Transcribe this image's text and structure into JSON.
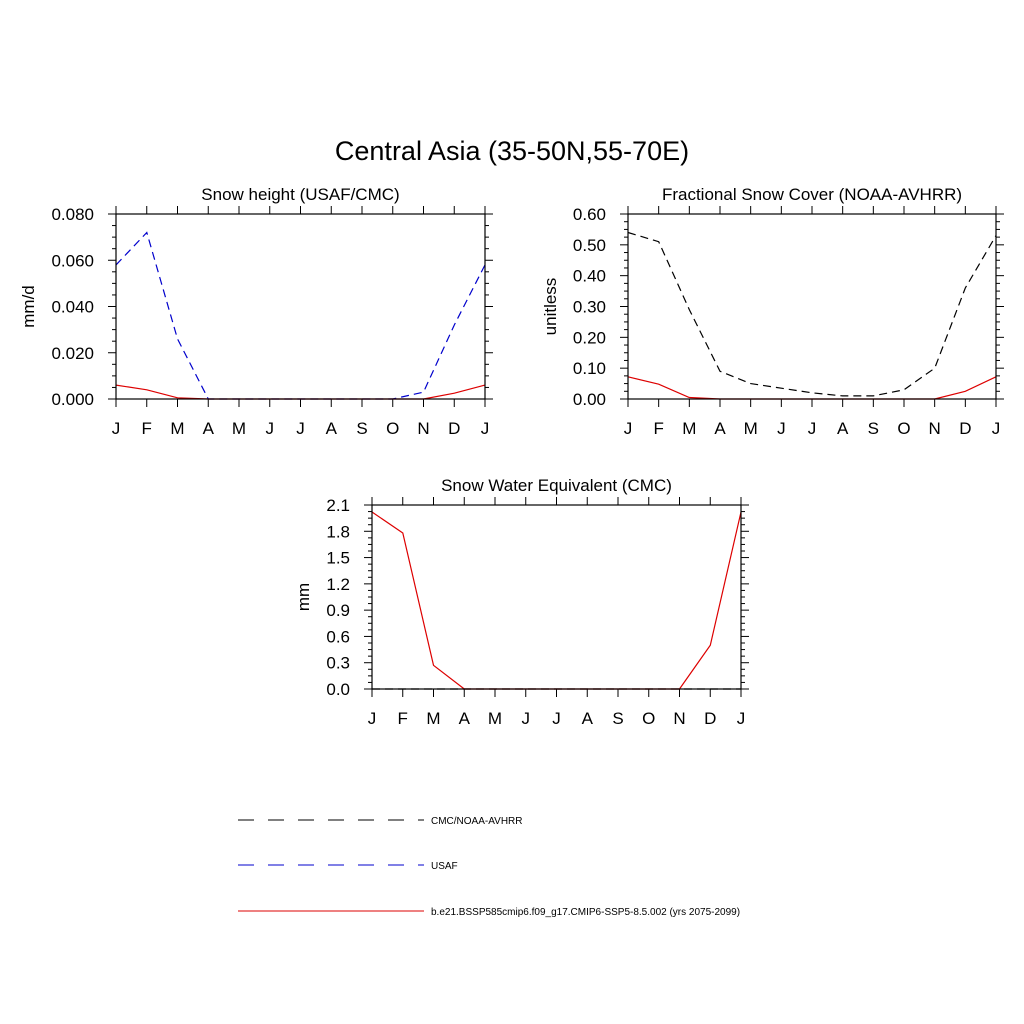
{
  "title": "Central Asia (35-50N,55-70E)",
  "legend": [
    {
      "label": "CMC/NOAA-AVHRR",
      "color": "#000000",
      "dash": "dashed"
    },
    {
      "label": "USAF",
      "color": "#0000cc",
      "dash": "dashed"
    },
    {
      "label": "b.e21.BSSP585cmip6.f09_g17.CMIP6-SSP5-8.5.002 (yrs 2075-2099)",
      "color": "#dd0000",
      "dash": "solid"
    }
  ],
  "chart_data": [
    {
      "type": "line",
      "title": "Snow height (USAF/CMC)",
      "xlabel": "",
      "ylabel": "mm/d",
      "categories": [
        "J",
        "F",
        "M",
        "A",
        "M",
        "J",
        "J",
        "A",
        "S",
        "O",
        "N",
        "D",
        "J"
      ],
      "yticks": [
        "0.000",
        "0.020",
        "0.040",
        "0.060",
        "0.080"
      ],
      "ylim": [
        0,
        0.08
      ],
      "series": [
        {
          "name": "USAF",
          "color": "#0000cc",
          "dash": "dashed",
          "values": [
            0.058,
            0.072,
            0.026,
            0.0,
            0.0,
            0.0,
            0.0,
            0.0,
            0.0,
            0.0,
            0.003,
            0.032,
            0.058
          ]
        },
        {
          "name": "b.e21.BSSP585cmip6.f09_g17.CMIP6-SSP5-8.5.002 (yrs 2075-2099)",
          "color": "#dd0000",
          "dash": "solid",
          "values": [
            0.006,
            0.004,
            0.0005,
            0.0,
            0.0,
            0.0,
            0.0,
            0.0,
            0.0,
            0.0,
            0.0,
            0.0025,
            0.006
          ]
        }
      ]
    },
    {
      "type": "line",
      "title": "Fractional Snow Cover (NOAA-AVHRR)",
      "xlabel": "",
      "ylabel": "unitless",
      "categories": [
        "J",
        "F",
        "M",
        "A",
        "M",
        "J",
        "J",
        "A",
        "S",
        "O",
        "N",
        "D",
        "J"
      ],
      "yticks": [
        "0.00",
        "0.10",
        "0.20",
        "0.30",
        "0.40",
        "0.50",
        "0.60"
      ],
      "ylim": [
        0,
        0.6
      ],
      "series": [
        {
          "name": "CMC/NOAA-AVHRR",
          "color": "#000000",
          "dash": "dashed",
          "values": [
            0.54,
            0.51,
            0.29,
            0.09,
            0.05,
            0.035,
            0.02,
            0.01,
            0.01,
            0.03,
            0.1,
            0.36,
            0.53
          ]
        },
        {
          "name": "b.e21.BSSP585cmip6.f09_g17.CMIP6-SSP5-8.5.002 (yrs 2075-2099)",
          "color": "#dd0000",
          "dash": "solid",
          "values": [
            0.072,
            0.048,
            0.005,
            0.0,
            0.0,
            0.0,
            0.0,
            0.0,
            0.0,
            0.0,
            0.0,
            0.025,
            0.072
          ]
        }
      ]
    },
    {
      "type": "line",
      "title": "Snow Water Equivalent (CMC)",
      "xlabel": "",
      "ylabel": "mm",
      "categories": [
        "J",
        "F",
        "M",
        "A",
        "M",
        "J",
        "J",
        "A",
        "S",
        "O",
        "N",
        "D",
        "J"
      ],
      "yticks": [
        "0.0",
        "0.3",
        "0.6",
        "0.9",
        "1.2",
        "1.5",
        "1.8",
        "2.1"
      ],
      "ylim": [
        0,
        2.1
      ],
      "series": [
        {
          "name": "CMC/NOAA-AVHRR",
          "color": "#000000",
          "dash": "dashed",
          "values": [
            0,
            0,
            0,
            0,
            0,
            0,
            0,
            0,
            0,
            0,
            0,
            0,
            0
          ]
        },
        {
          "name": "b.e21.BSSP585cmip6.f09_g17.CMIP6-SSP5-8.5.002 (yrs 2075-2099)",
          "color": "#dd0000",
          "dash": "solid",
          "values": [
            2.02,
            1.78,
            0.27,
            0.0,
            0.0,
            0.0,
            0.0,
            0.0,
            0.0,
            0.0,
            0.0,
            0.5,
            2.02
          ]
        }
      ]
    }
  ]
}
